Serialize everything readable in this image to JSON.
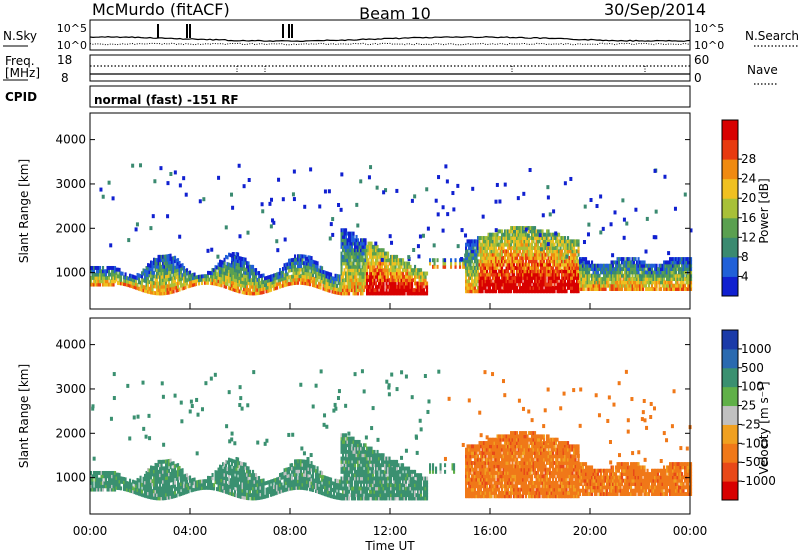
{
  "header": {
    "station": "McMurdo (fitACF)",
    "beam": "Beam 10",
    "date": "30/Sep/2014"
  },
  "noise_panel": {
    "left_label": "N.Sky",
    "left_ticks": [
      "10^5",
      "10^0"
    ],
    "right_label": "N.Search",
    "right_ticks": [
      "10^5",
      "10^0"
    ]
  },
  "freq_panel": {
    "left_label_1": "Freq.",
    "left_label_2": "[MHz]",
    "left_ticks": [
      "18",
      "8"
    ],
    "right_label": "Nave",
    "right_ticks": [
      "60",
      "0"
    ],
    "cpid_label": "CPID",
    "cpid_text": "normal (fast) -151 RF"
  },
  "chart_data": [
    {
      "type": "heatmap",
      "name": "power",
      "ylabel": "Slant Range [km]",
      "yticks": [
        1000,
        2000,
        3000,
        4000
      ],
      "ylim": [
        180,
        4600
      ],
      "xlim": [
        0,
        24
      ],
      "colorbar_label": "Power [dB]",
      "colorbar_ticks": [
        "4",
        "8",
        "12",
        "16",
        "20",
        "24",
        "28"
      ],
      "colorbar_colors": [
        "#1020d0",
        "#2060d8",
        "#3a8a70",
        "#5aa050",
        "#a8c038",
        "#f0c020",
        "#f08a10",
        "#e83a10",
        "#d80000"
      ]
    },
    {
      "type": "heatmap",
      "name": "velocity",
      "ylabel": "Slant Range [km]",
      "yticks": [
        1000,
        2000,
        3000,
        4000
      ],
      "ylim": [
        180,
        4600
      ],
      "xlim": [
        0,
        24
      ],
      "colorbar_label": "Velocity [m s⁻¹]",
      "colorbar_ticks": [
        "1000",
        "500",
        "100",
        "25",
        "-25",
        "-100",
        "-500",
        "-1000"
      ],
      "colorbar_colors": [
        "#1a3aa8",
        "#2a6ab0",
        "#3a9070",
        "#60b048",
        "#c0c0c0",
        "#f0a020",
        "#f07818",
        "#e84818",
        "#d80000"
      ]
    }
  ],
  "x_axis": {
    "ticks": [
      "00:00",
      "04:00",
      "08:00",
      "12:00",
      "16:00",
      "20:00",
      "00:00"
    ],
    "label": "Time UT"
  }
}
